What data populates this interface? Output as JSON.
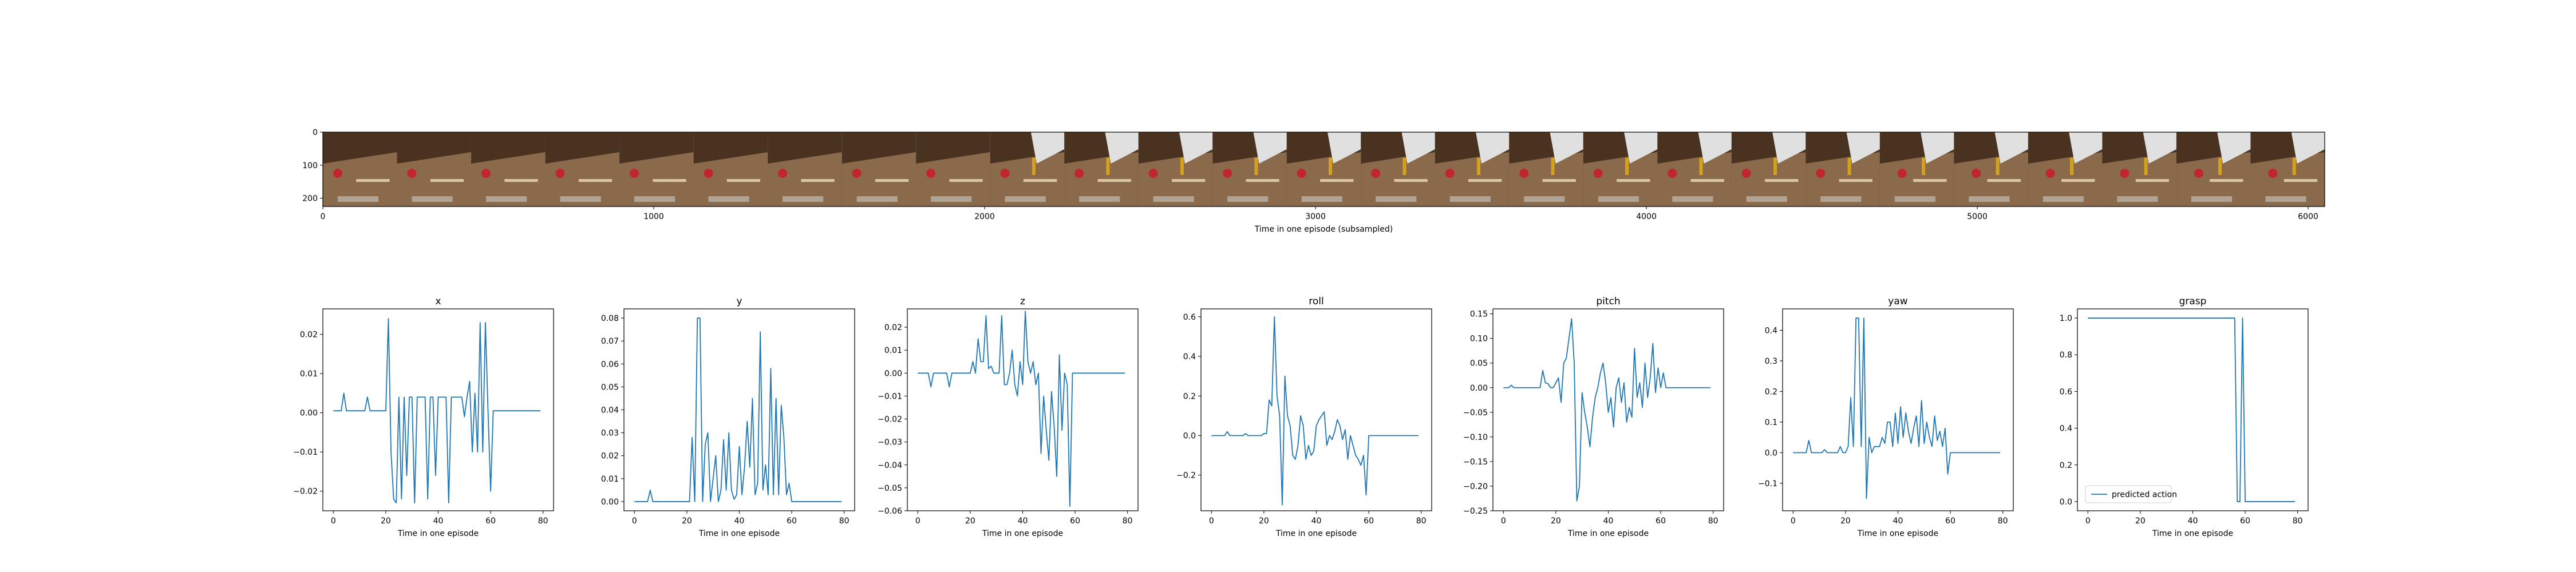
{
  "filmstrip": {
    "xlabel": "Time in one episode (subsampled)",
    "x_ticks": [
      0,
      1000,
      2000,
      3000,
      4000,
      5000,
      6000
    ],
    "y_ticks": [
      0,
      100,
      200
    ],
    "xlim": [
      0,
      6050
    ],
    "ylim": [
      0,
      225
    ],
    "frame_count": 27,
    "colors": {
      "wood": "#8a6a4a",
      "floor": "#6b4a2e",
      "wall": "#4a3220",
      "object": "#c0262c",
      "gripper": "#e0e0e0"
    }
  },
  "chart_data": [
    {
      "type": "line",
      "title": "x",
      "xlabel": "Time in one episode",
      "xlim": [
        -4,
        84
      ],
      "ylim": [
        -0.025,
        0.0265
      ],
      "x_ticks": [
        0,
        20,
        40,
        60,
        80
      ],
      "y_ticks": [
        -0.02,
        -0.01,
        0.0,
        0.01,
        0.02
      ],
      "y_tick_labels": [
        "−0.02",
        "−0.01",
        "0.00",
        "0.01",
        "0.02"
      ],
      "series": [
        {
          "color": "#1f77b4",
          "values": [
            0.0005,
            0.0005,
            0.0005,
            0.0005,
            0.005,
            0.0005,
            0.0005,
            0.0005,
            0.0005,
            0.0005,
            0.0005,
            0.0005,
            0.0005,
            0.004,
            0.0005,
            0.0005,
            0.0005,
            0.0005,
            0.0005,
            0.0005,
            0.0005,
            0.024,
            -0.01,
            -0.022,
            -0.023,
            0.004,
            -0.022,
            0.004,
            -0.016,
            0.004,
            0.004,
            -0.023,
            0.004,
            0.004,
            0.004,
            0.004,
            -0.022,
            0.004,
            0.004,
            -0.016,
            0.004,
            0.004,
            0.004,
            0.004,
            -0.023,
            0.004,
            0.004,
            0.004,
            0.004,
            0.004,
            -0.001,
            0.004,
            0.008,
            -0.01,
            0.005,
            -0.01,
            0.023,
            -0.01,
            0.023,
            0.0005,
            -0.02,
            0.0005,
            0.0005,
            0.0005,
            0.0005,
            0.0005,
            0.0005,
            0.0005,
            0.0005,
            0.0005,
            0.0005,
            0.0005,
            0.0005,
            0.0005,
            0.0005,
            0.0005,
            0.0005,
            0.0005,
            0.0005,
            0.0005
          ]
        }
      ]
    },
    {
      "type": "line",
      "title": "y",
      "xlabel": "Time in one episode",
      "xlim": [
        -4,
        84
      ],
      "ylim": [
        -0.004,
        0.084
      ],
      "x_ticks": [
        0,
        20,
        40,
        60,
        80
      ],
      "y_ticks": [
        0.0,
        0.01,
        0.02,
        0.03,
        0.04,
        0.05,
        0.06,
        0.07,
        0.08
      ],
      "y_tick_labels": [
        "0.00",
        "0.01",
        "0.02",
        "0.03",
        "0.04",
        "0.05",
        "0.06",
        "0.07",
        "0.08"
      ],
      "series": [
        {
          "color": "#1f77b4",
          "values": [
            0,
            0,
            0,
            0,
            0,
            0,
            0.005,
            0,
            0,
            0,
            0,
            0,
            0,
            0,
            0,
            0,
            0,
            0,
            0,
            0,
            0,
            0,
            0.028,
            0,
            0.08,
            0.08,
            0,
            0.025,
            0.03,
            0,
            0.01,
            0.02,
            0,
            0.005,
            0.027,
            0.005,
            0.03,
            0.005,
            0.001,
            0.003,
            0.024,
            0.003,
            0.015,
            0.035,
            0.015,
            0.045,
            0.003,
            0.008,
            0.074,
            0.005,
            0.016,
            0.003,
            0.058,
            0.003,
            0.045,
            0.003,
            0.042,
            0.028,
            0.003,
            0.008,
            0,
            0,
            0,
            0,
            0,
            0,
            0,
            0,
            0,
            0,
            0,
            0,
            0,
            0,
            0,
            0,
            0,
            0,
            0,
            0
          ]
        }
      ]
    },
    {
      "type": "line",
      "title": "z",
      "xlabel": "Time in one episode",
      "xlim": [
        -4,
        84
      ],
      "ylim": [
        -0.06,
        0.028
      ],
      "x_ticks": [
        0,
        20,
        40,
        60,
        80
      ],
      "y_ticks": [
        -0.06,
        -0.05,
        -0.04,
        -0.03,
        -0.02,
        -0.01,
        0.0,
        0.01,
        0.02
      ],
      "y_tick_labels": [
        "−0.06",
        "−0.05",
        "−0.04",
        "−0.03",
        "−0.02",
        "−0.01",
        "0.00",
        "0.01",
        "0.02"
      ],
      "series": [
        {
          "color": "#1f77b4",
          "values": [
            0,
            0,
            0,
            0,
            0,
            -0.006,
            0,
            0,
            0,
            0,
            0,
            0,
            -0.006,
            0,
            0,
            0,
            0,
            0,
            0,
            0,
            0,
            0.005,
            0,
            0.015,
            0.005,
            0.005,
            0.025,
            0.002,
            0.003,
            0,
            0,
            0,
            0.025,
            -0.005,
            -0.005,
            0,
            0.01,
            -0.005,
            -0.01,
            0.005,
            -0.005,
            0.027,
            0.005,
            0,
            0.005,
            -0.005,
            0,
            -0.035,
            -0.01,
            -0.025,
            -0.038,
            -0.008,
            -0.023,
            -0.045,
            0.008,
            -0.025,
            0,
            -0.005,
            -0.058,
            0,
            0,
            0,
            0,
            0,
            0,
            0,
            0,
            0,
            0,
            0,
            0,
            0,
            0,
            0,
            0,
            0,
            0,
            0,
            0,
            0
          ]
        }
      ]
    },
    {
      "type": "line",
      "title": "roll",
      "xlabel": "Time in one episode",
      "xlim": [
        -4,
        84
      ],
      "ylim": [
        -0.38,
        0.64
      ],
      "x_ticks": [
        0,
        20,
        40,
        60,
        80
      ],
      "y_ticks": [
        -0.2,
        0.0,
        0.2,
        0.4,
        0.6
      ],
      "y_tick_labels": [
        "−0.2",
        "0.0",
        "0.2",
        "0.4",
        "0.6"
      ],
      "series": [
        {
          "color": "#1f77b4",
          "values": [
            0,
            0,
            0,
            0,
            0,
            0,
            0.02,
            0,
            0,
            0,
            0,
            0,
            0,
            0.01,
            0,
            0,
            0,
            0,
            0,
            0,
            0.01,
            0.01,
            0.18,
            0.15,
            0.6,
            0.2,
            0.1,
            -0.35,
            0.3,
            0.1,
            0.05,
            -0.1,
            -0.12,
            -0.05,
            0.1,
            0.05,
            -0.12,
            -0.05,
            -0.1,
            -0.08,
            0.05,
            0.08,
            0.1,
            0.12,
            -0.05,
            0,
            -0.02,
            0.02,
            0.08,
            0.05,
            -0.02,
            0.03,
            -0.12,
            0,
            -0.05,
            -0.1,
            -0.12,
            -0.15,
            -0.1,
            -0.3,
            0,
            0,
            0,
            0,
            0,
            0,
            0,
            0,
            0,
            0,
            0,
            0,
            0,
            0,
            0,
            0,
            0,
            0,
            0,
            0
          ]
        }
      ]
    },
    {
      "type": "line",
      "title": "pitch",
      "xlabel": "Time in one episode",
      "xlim": [
        -4,
        84
      ],
      "ylim": [
        -0.25,
        0.16
      ],
      "x_ticks": [
        0,
        20,
        40,
        60,
        80
      ],
      "y_ticks": [
        -0.25,
        -0.2,
        -0.15,
        -0.1,
        -0.05,
        0.0,
        0.05,
        0.1,
        0.15
      ],
      "y_tick_labels": [
        "−0.25",
        "−0.20",
        "−0.15",
        "−0.10",
        "−0.05",
        "0.00",
        "0.05",
        "0.10",
        "0.15"
      ],
      "series": [
        {
          "color": "#1f77b4",
          "values": [
            0,
            0,
            0,
            0.005,
            0,
            0,
            0,
            0,
            0,
            0,
            0,
            0,
            0,
            0,
            0,
            0.035,
            0.01,
            0.008,
            0,
            0,
            0.01,
            0.02,
            -0.03,
            0.05,
            0.06,
            0.1,
            0.14,
            0.05,
            -0.23,
            -0.2,
            -0.01,
            -0.05,
            -0.08,
            -0.12,
            -0.06,
            -0.02,
            0,
            0.03,
            0.05,
            0.01,
            -0.05,
            -0.02,
            -0.08,
            0,
            0.02,
            -0.03,
            0.01,
            -0.07,
            -0.04,
            -0.06,
            0.08,
            -0.02,
            0.01,
            -0.04,
            0.05,
            -0.02,
            0.02,
            0.09,
            -0.01,
            0.04,
            0,
            0.03,
            0,
            0,
            0,
            0,
            0,
            0,
            0,
            0,
            0,
            0,
            0,
            0,
            0,
            0,
            0,
            0,
            0,
            0
          ]
        }
      ]
    },
    {
      "type": "line",
      "title": "yaw",
      "xlabel": "Time in one episode",
      "xlim": [
        -4,
        84
      ],
      "ylim": [
        -0.19,
        0.47
      ],
      "x_ticks": [
        0,
        20,
        40,
        60,
        80
      ],
      "y_ticks": [
        -0.1,
        0.0,
        0.1,
        0.2,
        0.3,
        0.4
      ],
      "y_tick_labels": [
        "−0.1",
        "0.0",
        "0.1",
        "0.2",
        "0.3",
        "0.4"
      ],
      "series": [
        {
          "color": "#1f77b4",
          "values": [
            0,
            0,
            0,
            0,
            0,
            0,
            0.04,
            0,
            0,
            0,
            0,
            0,
            0.01,
            0,
            0,
            0,
            0,
            0,
            0.02,
            0,
            0,
            0.02,
            0.18,
            0.02,
            0.44,
            0.44,
            0.02,
            0.44,
            -0.15,
            0.05,
            0,
            0.02,
            0.02,
            0.02,
            0.05,
            0.03,
            0.1,
            0.1,
            0.02,
            0.13,
            0.03,
            0.15,
            0.05,
            0.13,
            0.07,
            0.03,
            0.08,
            0.12,
            0.02,
            0.17,
            0.03,
            0.1,
            0.05,
            0.02,
            0.12,
            0.04,
            0.07,
            0.02,
            0.08,
            -0.07,
            0,
            0,
            0,
            0,
            0,
            0,
            0,
            0,
            0,
            0,
            0,
            0,
            0,
            0,
            0,
            0,
            0,
            0,
            0,
            0
          ]
        }
      ]
    },
    {
      "type": "line",
      "title": "grasp",
      "xlabel": "Time in one episode",
      "xlim": [
        -4,
        84
      ],
      "ylim": [
        -0.05,
        1.05
      ],
      "x_ticks": [
        0,
        20,
        40,
        60,
        80
      ],
      "y_ticks": [
        0.0,
        0.2,
        0.4,
        0.6,
        0.8,
        1.0
      ],
      "y_tick_labels": [
        "0.0",
        "0.2",
        "0.4",
        "0.6",
        "0.8",
        "1.0"
      ],
      "legend": "lower-left",
      "series": [
        {
          "name": "predicted action",
          "color": "#1f77b4",
          "values": [
            1,
            1,
            1,
            1,
            1,
            1,
            1,
            1,
            1,
            1,
            1,
            1,
            1,
            1,
            1,
            1,
            1,
            1,
            1,
            1,
            1,
            1,
            1,
            1,
            1,
            1,
            1,
            1,
            1,
            1,
            1,
            1,
            1,
            1,
            1,
            1,
            1,
            1,
            1,
            1,
            1,
            1,
            1,
            1,
            1,
            1,
            1,
            1,
            1,
            1,
            1,
            1,
            1,
            1,
            1,
            1,
            1,
            0,
            0,
            1,
            0,
            0,
            0,
            0,
            0,
            0,
            0,
            0,
            0,
            0,
            0,
            0,
            0,
            0,
            0,
            0,
            0,
            0,
            0,
            0
          ]
        }
      ]
    }
  ]
}
